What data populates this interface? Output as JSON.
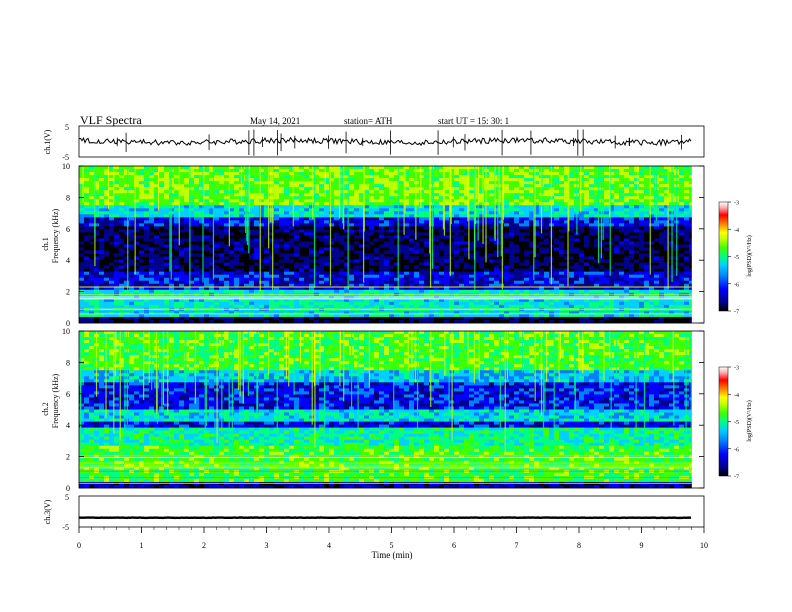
{
  "header": {
    "title": "VLF  Spectra",
    "date": "May 14, 2021",
    "station": "station= ATH",
    "start_ut": "start  UT  =    15: 30: 1"
  },
  "chart_data": [
    {
      "type": "line",
      "ylabel": "ch.1(V)",
      "ylim": [
        -5,
        5
      ],
      "yticks": [
        "5",
        "-5"
      ],
      "baseline": 0,
      "color": "#000000"
    },
    {
      "type": "heatmap",
      "ylabel_line1": "ch.1",
      "ylabel_line2": "Frequency  (kHz)",
      "ylim": [
        0,
        10
      ],
      "yticks": [
        "0",
        "2",
        "4",
        "6",
        "8",
        "10"
      ],
      "colorbar": {
        "label": "log(PSD)(V²/Hz)",
        "range": [
          -7,
          -3
        ],
        "ticks": [
          "-3",
          "-4",
          "-5",
          "-6",
          "-7"
        ]
      }
    },
    {
      "type": "heatmap",
      "ylabel_line1": "ch.2",
      "ylabel_line2": "Frequency  (kHz)",
      "ylim": [
        0,
        10
      ],
      "yticks": [
        "0",
        "2",
        "4",
        "6",
        "8",
        "10"
      ],
      "colorbar": {
        "label": "log(PSD)(V²/Hz)",
        "range": [
          -7,
          -3
        ],
        "ticks": [
          "-3",
          "-4",
          "-5",
          "-6",
          "-7"
        ]
      }
    },
    {
      "type": "line",
      "ylabel": "ch.3(V)",
      "ylim": [
        -5,
        5
      ],
      "yticks": [
        "5",
        "-5"
      ],
      "baseline": -2,
      "color": "#000000"
    }
  ],
  "xaxis": {
    "label": "Time  (min)",
    "range": [
      0,
      10
    ],
    "data_end": 9.8,
    "ticks": [
      "0",
      "1",
      "2",
      "3",
      "4",
      "5",
      "6",
      "7",
      "8",
      "9",
      "10"
    ]
  },
  "colormap": [
    "#000000",
    "#00008b",
    "#0000ff",
    "#0080ff",
    "#00d0ff",
    "#00ff80",
    "#40ff00",
    "#c0ff00",
    "#ffff00",
    "#ff8000",
    "#ff0000",
    "#ffb0b0",
    "#ffffff"
  ]
}
